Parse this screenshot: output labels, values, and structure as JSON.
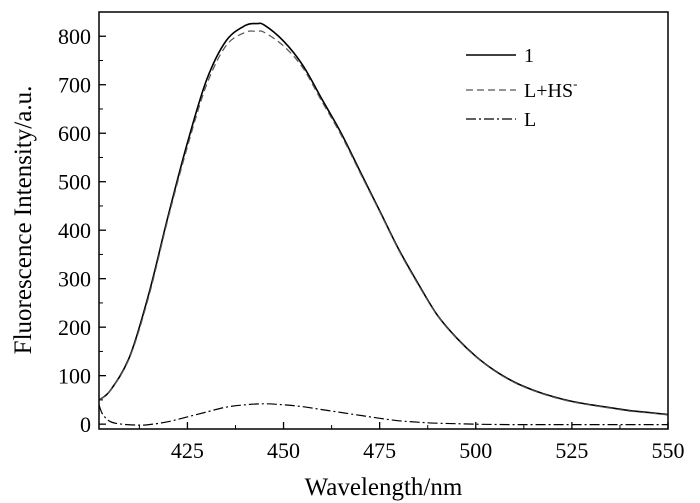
{
  "chart_data": {
    "type": "line",
    "xlabel": "Wavelength/nm",
    "ylabel": "Fluorescence Intensity/a.u.",
    "xlim": [
      402,
      550
    ],
    "ylim": [
      -10,
      850
    ],
    "x_ticks": [
      425,
      450,
      475,
      500,
      525,
      550
    ],
    "y_ticks": [
      0,
      100,
      200,
      300,
      400,
      500,
      600,
      700,
      800
    ],
    "grid": false,
    "legend_position": "top-right",
    "series": [
      {
        "name": "1",
        "style": "solid",
        "color": "#000000",
        "x": [
          402,
          405,
          410,
          415,
          420,
          425,
          430,
          435,
          440,
          443,
          445,
          450,
          455,
          460,
          465,
          470,
          475,
          480,
          485,
          490,
          495,
          500,
          505,
          510,
          515,
          520,
          525,
          530,
          535,
          540,
          545,
          550
        ],
        "y": [
          50,
          70,
          140,
          270,
          430,
          580,
          710,
          790,
          822,
          826,
          823,
          790,
          740,
          670,
          600,
          520,
          440,
          360,
          290,
          225,
          178,
          140,
          110,
          87,
          70,
          57,
          47,
          40,
          34,
          28,
          24,
          20
        ]
      },
      {
        "name_main": "L+HS",
        "name_sup": "-",
        "style": "dashed",
        "color": "#555555",
        "x": [
          402,
          405,
          410,
          415,
          420,
          425,
          430,
          435,
          440,
          443,
          445,
          450,
          455,
          460,
          465,
          470,
          475,
          480,
          485,
          490,
          495,
          500,
          505,
          510,
          515,
          520,
          525,
          530,
          535,
          540,
          545,
          550
        ],
        "y": [
          50,
          70,
          138,
          265,
          425,
          572,
          700,
          780,
          808,
          810,
          808,
          780,
          735,
          665,
          596,
          517,
          438,
          358,
          288,
          224,
          177,
          139,
          109,
          86,
          69,
          56,
          46,
          39,
          33,
          27,
          23,
          19
        ]
      },
      {
        "name": "L",
        "style": "dashdot",
        "color": "#000000",
        "x": [
          402,
          403,
          405,
          408,
          412,
          415,
          420,
          425,
          430,
          435,
          440,
          445,
          450,
          455,
          460,
          465,
          470,
          475,
          480,
          485,
          490,
          500,
          510,
          520,
          530,
          540,
          550
        ],
        "y": [
          40,
          20,
          5,
          0,
          -2,
          -1,
          5,
          15,
          25,
          35,
          40,
          42,
          40,
          36,
          30,
          24,
          18,
          12,
          7,
          4,
          2,
          0,
          -1,
          -1,
          -1,
          -1,
          -1
        ]
      }
    ]
  }
}
